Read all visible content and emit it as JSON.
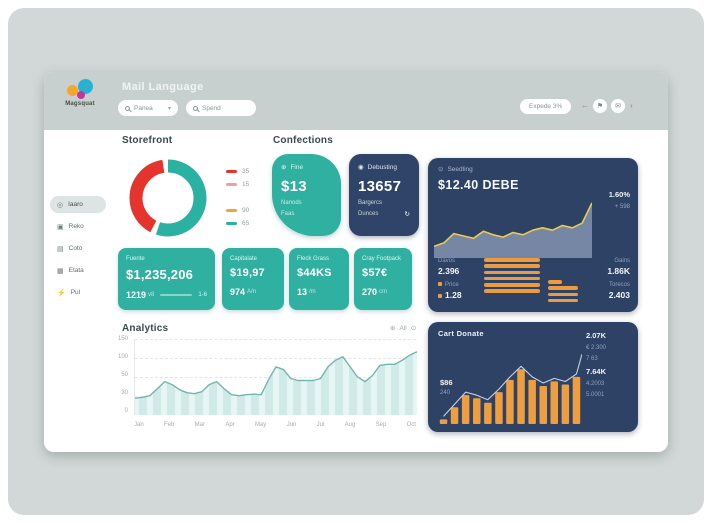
{
  "brand": {
    "name": "Magsquat"
  },
  "header": {
    "title": "Mail Language",
    "search_primary": "Panea",
    "search_secondary": "Spend",
    "export_label": "Expede 3%"
  },
  "icons": {
    "caret": "▾",
    "back": "←",
    "forward": "›",
    "flag": "⚑",
    "mail": "✉",
    "add": "⊕",
    "circle": "⊙",
    "refresh": "↻"
  },
  "sidebar": {
    "items": [
      {
        "icon": "◎",
        "label": "Iaaro"
      },
      {
        "icon": "▣",
        "label": "Reko"
      },
      {
        "icon": "▤",
        "label": "Coto"
      },
      {
        "icon": "▦",
        "label": "Etata"
      },
      {
        "icon": "⚡",
        "label": "Pul"
      }
    ]
  },
  "storefront": {
    "title": "Storefront"
  },
  "confections": {
    "title": "Confections",
    "fine_card": {
      "icon": "⊕",
      "label": "Fine",
      "value": "$13",
      "line1": "Nanods",
      "line2": "Faas"
    },
    "count_card": {
      "icon": "◉",
      "label": "Debusting",
      "value": "13657",
      "line1": "Bargercs",
      "line2": "Dunces",
      "refresh_icon": "↻"
    }
  },
  "metrics": [
    {
      "label": "Fuente",
      "value": "$1,235,206",
      "sub": "1219",
      "sub_small": "v8",
      "right": "1-6"
    },
    {
      "label": "Capitalate",
      "value": "$19,97",
      "sub": "974",
      "sub_small": "A/n"
    },
    {
      "label": "Fleck Grass",
      "value": "$44KS",
      "sub": "13",
      "sub_small": "/m"
    },
    {
      "label": "Cray Footpack",
      "value": "$57€",
      "sub": "270",
      "sub_small": "cm"
    }
  ],
  "analytics": {
    "title": "Analytics",
    "toolbar_label": "All"
  },
  "spending": {
    "icon": "⊙",
    "header": "Seedling",
    "value": "$12.40 DEBE",
    "pct": "1.60%",
    "delta": "+ 598",
    "stats_left": [
      {
        "label": "Davos",
        "value": "2.396"
      },
      {
        "label": "Price",
        "value": "1.28"
      }
    ],
    "stats_right": [
      {
        "label": "Gains",
        "value": "1.86K"
      },
      {
        "label": "Torecos",
        "value": "2.403"
      }
    ]
  },
  "cart": {
    "title": "Cart Donate",
    "left_value": "$86",
    "left_sub": "240",
    "right_values": [
      "2.07K",
      "€ 2.300",
      "7 63",
      "7.64K",
      "4.2003",
      "5.0001"
    ]
  },
  "chart_data": [
    {
      "id": "storefront-donut",
      "type": "donut",
      "title": "Storefront",
      "segments": [
        {
          "label": "65",
          "value": 55,
          "color": "#2bb1a1"
        },
        {
          "label": "35",
          "value": 40,
          "color": "#e5332e"
        }
      ],
      "legend": [
        {
          "label": "35",
          "color": "#e5332e"
        },
        {
          "label": "15",
          "color": "#f2a09c"
        },
        {
          "label": "90",
          "color": "#f2a33c"
        },
        {
          "label": "65",
          "color": "#2bb1a1"
        }
      ]
    },
    {
      "id": "analytics-area",
      "type": "area",
      "title": "Analytics",
      "ylim": [
        0,
        150
      ],
      "y_ticks": [
        "150",
        "100",
        "50",
        "30",
        "0"
      ],
      "x_labels": [
        "Jan",
        "Feb",
        "Mar",
        "Apr",
        "May",
        "Jun",
        "Jul",
        "Aug",
        "Sep",
        "Oct"
      ],
      "values": [
        33,
        35,
        38,
        52,
        66,
        60,
        50,
        44,
        42,
        46,
        60,
        66,
        52,
        40,
        38,
        40,
        41,
        40,
        70,
        95,
        90,
        72,
        68,
        68,
        68,
        72,
        95,
        108,
        115,
        95,
        75,
        66,
        78,
        98,
        100,
        100,
        108,
        118,
        125
      ],
      "fill": "#e7f5f4",
      "stripes": true,
      "stripe_color": "#cfeae7",
      "stroke": "#74b5ae",
      "grid": true,
      "legend_position": "none"
    },
    {
      "id": "spending-area",
      "type": "area",
      "ylim": [
        0,
        100
      ],
      "values": [
        20,
        26,
        42,
        38,
        34,
        46,
        40,
        36,
        44,
        40,
        48,
        52,
        48,
        56,
        52,
        60,
        95
      ],
      "fill": "#7e8eac",
      "fill_opacity": 0.9,
      "stroke": "#e9cb52",
      "stroke_width": 1.6
    },
    {
      "id": "spending-bars",
      "type": "hbars",
      "color": "#ec9b40",
      "groups": [
        [
          56,
          56,
          56,
          56,
          56,
          56
        ],
        [
          14,
          30,
          30,
          30
        ]
      ]
    },
    {
      "id": "cart-bars",
      "type": "bar",
      "ylim": [
        0,
        100
      ],
      "values": [
        6,
        22,
        38,
        34,
        28,
        42,
        58,
        72,
        58,
        50,
        56,
        52,
        62
      ],
      "fill": "#ee9d3f",
      "line_color": "#c9d1e0",
      "line_end": 92
    }
  ]
}
